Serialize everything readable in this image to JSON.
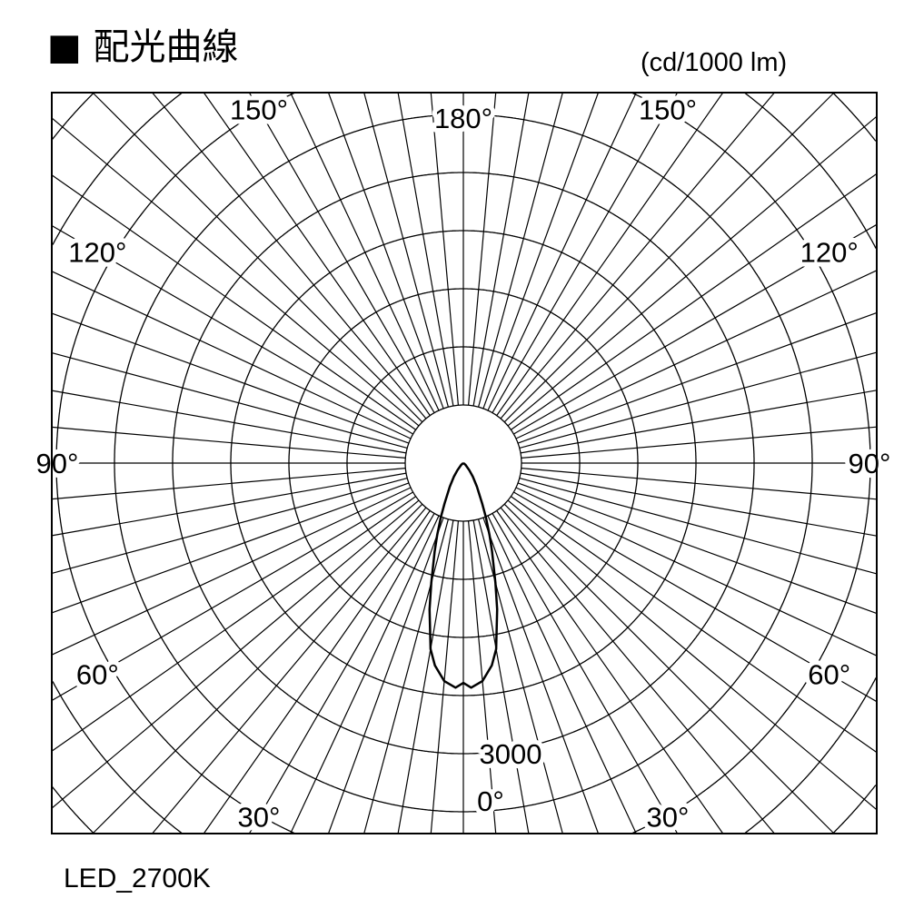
{
  "header": {
    "title": "■ 配光曲線",
    "units": "(cd/1000 lm)"
  },
  "footer": {
    "label": "LED_2700K"
  },
  "chart_data": {
    "type": "polar",
    "title": "配光曲線",
    "units": "(cd/1000 lm)",
    "ring_step_cd": 600,
    "scale_label": {
      "value": 3000,
      "text": "3000"
    },
    "angle_step_deg": 5,
    "angle_labels": [
      {
        "angle": 0,
        "text": "0°"
      },
      {
        "angle": -30,
        "text": "30°"
      },
      {
        "angle": 30,
        "text": "30°"
      },
      {
        "angle": -60,
        "text": "60°"
      },
      {
        "angle": 60,
        "text": "60°"
      },
      {
        "angle": -90,
        "text": "90°"
      },
      {
        "angle": 90,
        "text": "90°"
      },
      {
        "angle": -120,
        "text": "120°"
      },
      {
        "angle": 120,
        "text": "120°"
      },
      {
        "angle": -150,
        "text": "150°"
      },
      {
        "angle": 150,
        "text": "150°"
      },
      {
        "angle": 180,
        "text": "180°"
      }
    ],
    "series": [
      {
        "name": "LED_2700K",
        "angles": [
          0,
          2,
          5,
          8,
          10,
          13,
          15,
          18,
          20,
          22.5,
          25,
          30,
          35,
          40,
          50,
          60,
          90
        ],
        "values": [
          2270,
          2320,
          2260,
          2110,
          1950,
          1550,
          1280,
          960,
          790,
          610,
          460,
          280,
          170,
          95,
          30,
          5,
          0
        ]
      }
    ],
    "grid": true
  }
}
